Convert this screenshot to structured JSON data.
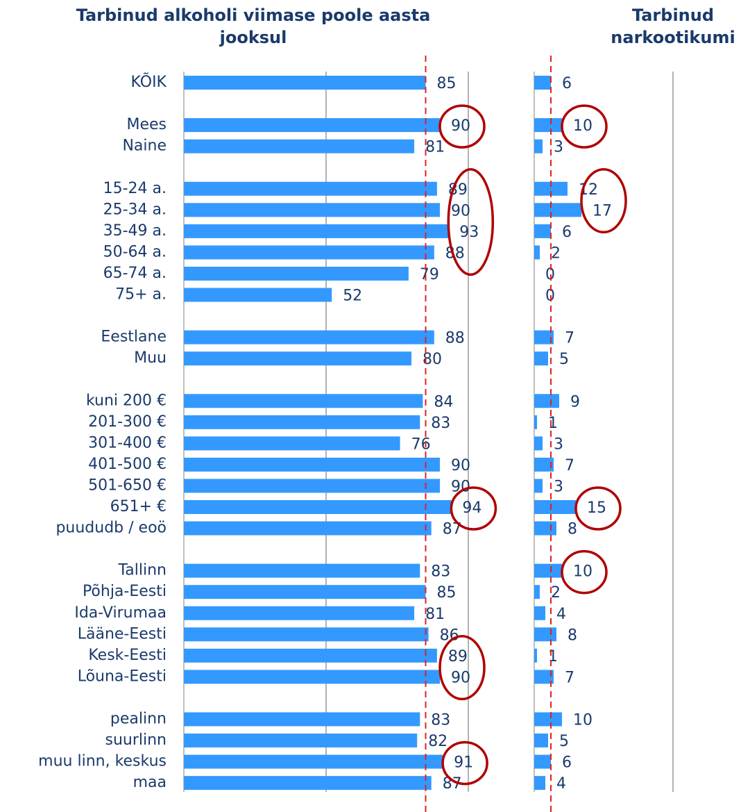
{
  "chart_data": [
    {
      "type": "bar",
      "orientation": "horizontal",
      "title": "Tarbinud alkoholi viimase poole aasta jooksul",
      "categories": [
        "KÕIK",
        null,
        "Mees",
        "Naine",
        null,
        "15-24 a.",
        "25-34 a.",
        "35-49 a.",
        "50-64 a.",
        "65-74 a.",
        "75+ a.",
        null,
        "Eestlane",
        "Muu",
        null,
        "kuni 200 €",
        "201-300 €",
        "301-400 €",
        "401-500 €",
        "501-650 €",
        "651+ €",
        "puududb / eoö",
        null,
        "Tallinn",
        "Põhja-Eesti",
        "Ida-Virumaa",
        "Lääne-Eesti",
        "Kesk-Eesti",
        "Lõuna-Eesti",
        null,
        "pealinn",
        "suurlinn",
        "muu linn, keskus",
        "maa"
      ],
      "values": [
        85,
        null,
        90,
        81,
        null,
        89,
        90,
        93,
        88,
        79,
        52,
        null,
        88,
        80,
        null,
        84,
        83,
        76,
        90,
        90,
        94,
        87,
        null,
        83,
        85,
        81,
        86,
        89,
        90,
        null,
        83,
        82,
        91,
        87
      ],
      "color": "#3399ff",
      "xlim": [
        0,
        100
      ],
      "xticks": [
        0,
        50,
        100
      ],
      "grid": true,
      "reference_line": 85,
      "highlight_groups": [
        [
          2
        ],
        [
          5,
          6,
          7,
          8
        ],
        [
          20
        ],
        [
          27,
          28
        ],
        [
          32
        ]
      ]
    },
    {
      "type": "bar",
      "orientation": "horizontal",
      "title": "Tarbinud narkootikumi",
      "values": [
        6,
        null,
        10,
        3,
        null,
        12,
        17,
        6,
        2,
        0,
        0,
        null,
        7,
        5,
        null,
        9,
        1,
        3,
        7,
        3,
        15,
        8,
        null,
        10,
        2,
        4,
        8,
        1,
        7,
        null,
        10,
        5,
        6,
        4
      ],
      "color": "#3399ff",
      "xlim": [
        0,
        50
      ],
      "xticks": [
        0,
        50
      ],
      "grid": true,
      "reference_line": 6,
      "highlight_groups": [
        [
          2
        ],
        [
          5,
          6
        ],
        [
          20
        ],
        [
          23
        ]
      ]
    }
  ]
}
